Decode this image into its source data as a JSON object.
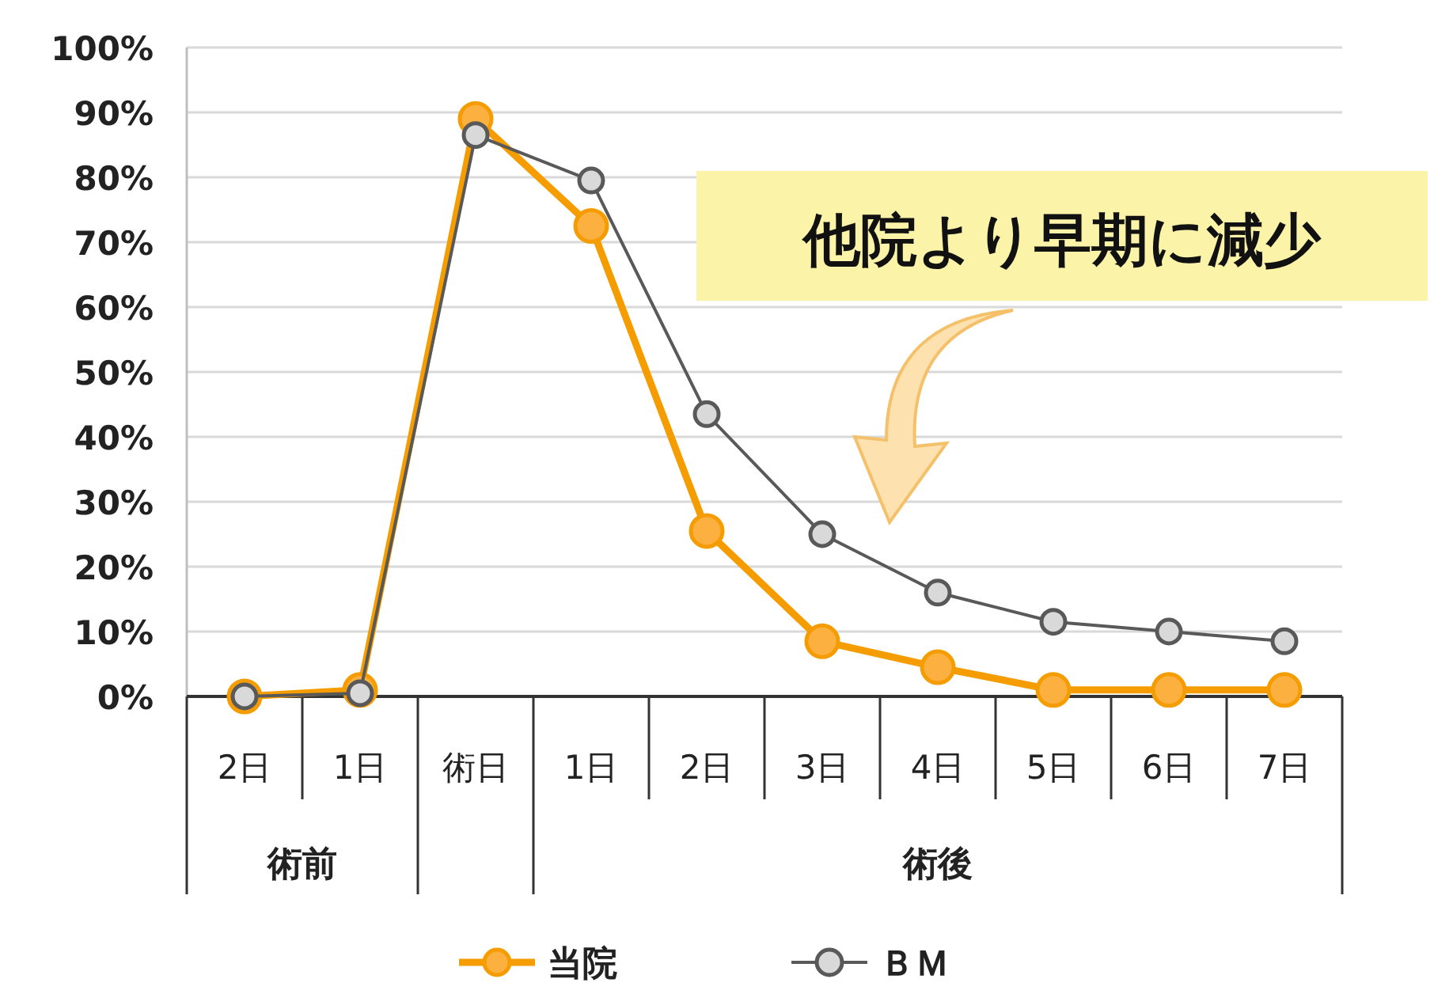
{
  "chart_data": {
    "type": "line",
    "categories": [
      "2日",
      "1日",
      "術日",
      "1日",
      "2日",
      "3日",
      "4日",
      "5日",
      "6日",
      "7日"
    ],
    "series": [
      {
        "name": "当院",
        "color": "#f59c00",
        "values": [
          0,
          1,
          89,
          72.5,
          25.5,
          8.5,
          4.5,
          1,
          1,
          1
        ]
      },
      {
        "name": "ＢＭ",
        "color": "#595959",
        "values": [
          0,
          0.5,
          86.5,
          79.5,
          43.5,
          25,
          16,
          11.5,
          10,
          8.5
        ]
      }
    ],
    "ylim": [
      0,
      100
    ],
    "yticks": [
      {
        "value": 0,
        "label": "0%"
      },
      {
        "value": 10,
        "label": "10%"
      },
      {
        "value": 20,
        "label": "20%"
      },
      {
        "value": 30,
        "label": "30%"
      },
      {
        "value": 40,
        "label": "40%"
      },
      {
        "value": 50,
        "label": "50%"
      },
      {
        "value": 60,
        "label": "60%"
      },
      {
        "value": 70,
        "label": "70%"
      },
      {
        "value": 80,
        "label": "80%"
      },
      {
        "value": 90,
        "label": "90%"
      },
      {
        "value": 100,
        "label": "100%"
      }
    ],
    "grid": "y",
    "marker": "circle",
    "legend": "bottom",
    "annotations": [
      "他院より早期に減少",
      "術前",
      "術後"
    ]
  }
}
